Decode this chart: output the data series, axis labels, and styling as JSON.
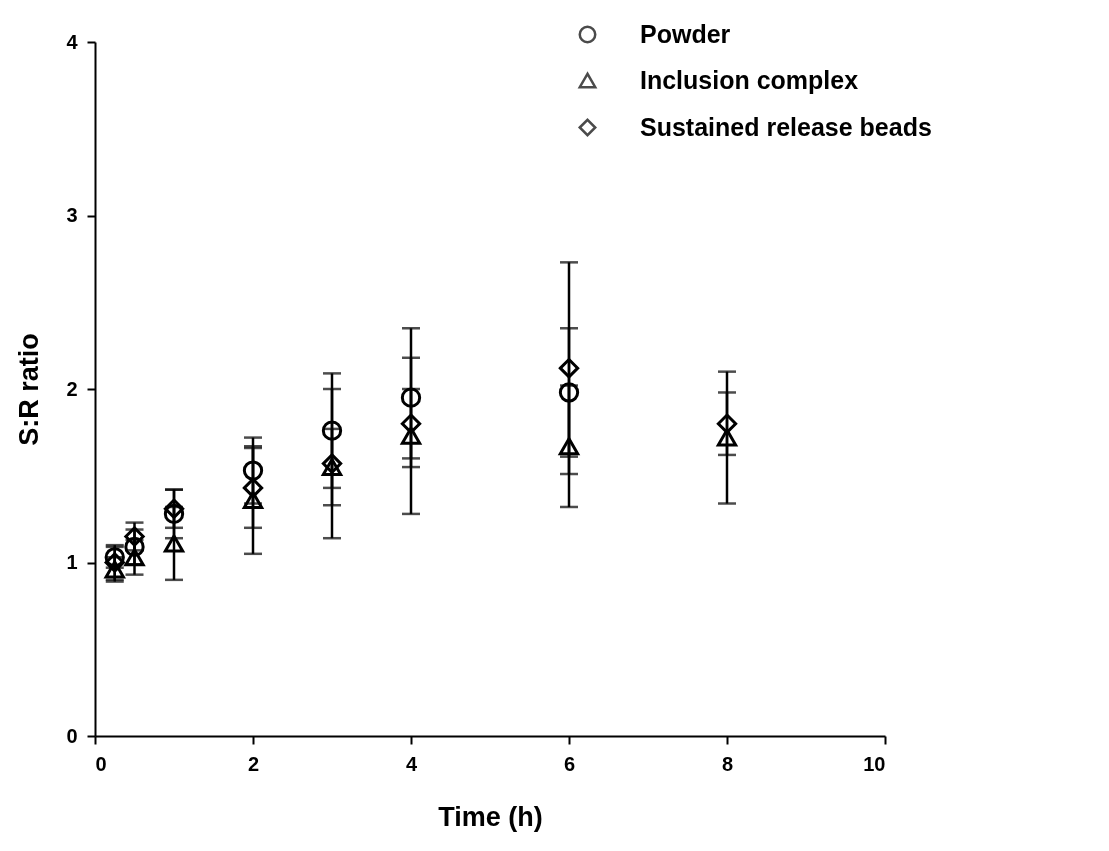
{
  "chart_data": {
    "type": "scatter",
    "xlabel": "Time (h)",
    "ylabel": "S:R ratio",
    "x": [
      0.25,
      0.5,
      1,
      2,
      3,
      4,
      6,
      8
    ],
    "series": [
      {
        "name": "Powder",
        "color": "#000000",
        "marker": "circle",
        "values": [
          1.03,
          1.09,
          1.28,
          1.53,
          1.76,
          1.95,
          1.98,
          null
        ],
        "errors": [
          0.06,
          0.1,
          0.14,
          0.19,
          0.33,
          0.4,
          0.37,
          null
        ]
      },
      {
        "name": "Inclusion complex",
        "color": "#000000",
        "marker": "triangle",
        "values": [
          0.96,
          1.03,
          1.11,
          1.36,
          1.55,
          1.73,
          1.67,
          1.72
        ],
        "errors": [
          0.07,
          0.1,
          0.21,
          0.31,
          0.22,
          0.45,
          0.35,
          0.38
        ]
      },
      {
        "name": "Sustained release beads",
        "color": "#000000",
        "marker": "diamond",
        "values": [
          1.0,
          1.15,
          1.31,
          1.43,
          1.57,
          1.8,
          2.12,
          1.8
        ],
        "errors": [
          0.1,
          0.08,
          0.11,
          0.23,
          0.43,
          0.2,
          0.61,
          0.18
        ]
      }
    ],
    "xlim": [
      0,
      10
    ],
    "xticks": [
      {
        "value": 0,
        "label": "0"
      },
      {
        "value": 2,
        "label": "2"
      },
      {
        "value": 4,
        "label": "4"
      },
      {
        "value": 6,
        "label": "6"
      },
      {
        "value": 8,
        "label": "8"
      },
      {
        "value": 10,
        "label": "10"
      }
    ],
    "ylim": [
      0,
      4
    ],
    "yticks": [
      {
        "value": 0,
        "label": "0"
      },
      {
        "value": 1,
        "label": "1"
      },
      {
        "value": 2,
        "label": "2"
      },
      {
        "value": 3,
        "label": "3"
      },
      {
        "value": 4,
        "label": "4"
      }
    ],
    "grid": false,
    "legend": "top right"
  }
}
